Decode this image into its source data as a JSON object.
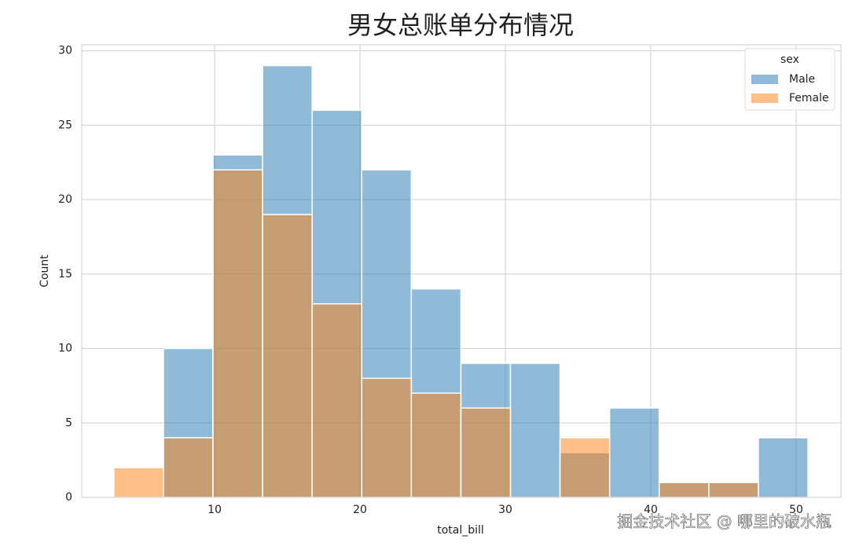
{
  "chart_data": {
    "type": "histogram",
    "title": "男女总账单分布情况",
    "x_label": "total_bill",
    "y_label": "Count",
    "bins": [
      3.07,
      6.48,
      9.89,
      13.3,
      16.71,
      20.12,
      23.53,
      26.94,
      30.35,
      33.76,
      37.17,
      40.58,
      43.99,
      47.4,
      50.81
    ],
    "series": [
      {
        "name": "Male",
        "color": "#1f77b4",
        "values": [
          0,
          10,
          23,
          29,
          26,
          22,
          14,
          9,
          9,
          3,
          6,
          1,
          1,
          4
        ]
      },
      {
        "name": "Female",
        "color": "#ff7f0e",
        "values": [
          2,
          4,
          22,
          19,
          13,
          8,
          7,
          6,
          0,
          4,
          0,
          1,
          1,
          0
        ]
      }
    ],
    "legend_title": "sex",
    "legend": "upper right",
    "xlim": [
      0.86,
      53.08
    ],
    "ylim": [
      0,
      30.4
    ],
    "xticks": [
      10,
      20,
      30,
      40,
      50
    ],
    "yticks": [
      0,
      5,
      10,
      15,
      20,
      25,
      30
    ],
    "grid": true,
    "watermark": "掘金技术社区 @ 哪里的破水瓶"
  }
}
